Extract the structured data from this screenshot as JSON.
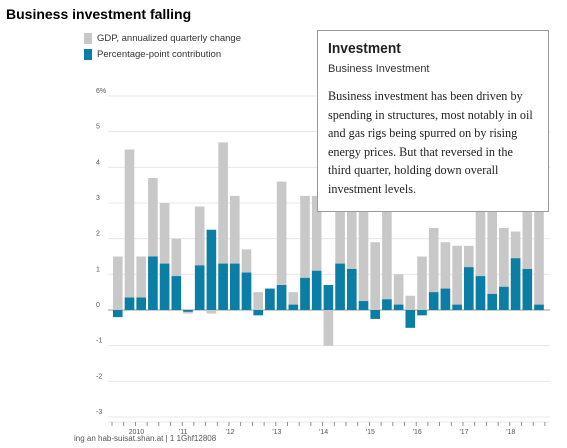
{
  "page": {
    "title": "Business investment falling"
  },
  "legend": [
    {
      "label": "GDP, annualized quarterly change",
      "color": "#c8c8c8"
    },
    {
      "label": "Percentage-point contribution",
      "color": "#0a7ea4"
    }
  ],
  "tooltip": {
    "title": "Investment",
    "subtitle": "Business Investment",
    "body": "Business investment has been driven by spending in structures, most notably in oil and gas rigs being spurred on by rising energy prices. But that reversed in the third quarter, holding down overall investment levels."
  },
  "bottom_caption": "ing an hab-suisat.shan.at | 1 1Ghf12808",
  "chart_data": {
    "type": "bar",
    "title": "Business investment falling",
    "xlabel": "",
    "ylabel": "",
    "ylim": [
      -3,
      6
    ],
    "yticks": [
      6,
      5,
      4,
      3,
      2,
      1,
      0,
      -1,
      -2,
      -3
    ],
    "ytick_labels": [
      "6%",
      "5",
      "4",
      "3",
      "2",
      "1",
      "0",
      "-1",
      "-2",
      "-3"
    ],
    "year_labels": [
      {
        "label": "2010",
        "index": 2
      },
      {
        "label": "'11",
        "index": 6
      },
      {
        "label": "'12",
        "index": 10
      },
      {
        "label": "'13",
        "index": 14
      },
      {
        "label": "'14",
        "index": 18
      },
      {
        "label": "'15",
        "index": 22
      },
      {
        "label": "'16",
        "index": 26
      },
      {
        "label": "'17",
        "index": 30
      },
      {
        "label": "'18",
        "index": 34
      }
    ],
    "grid": true,
    "legend_position": "top-left",
    "series": [
      {
        "name": "GDP, annualized quarterly change",
        "color": "#c8c8c8",
        "values": [
          1.5,
          4.5,
          1.5,
          3.7,
          3.0,
          2.0,
          -0.1,
          2.9,
          -0.1,
          4.7,
          3.2,
          1.7,
          0.5,
          0.6,
          3.6,
          0.5,
          3.2,
          3.2,
          -1.0,
          5.0,
          5.0,
          3.3,
          1.9,
          3.3,
          1.0,
          0.4,
          1.5,
          2.3,
          1.9,
          1.8,
          1.8,
          3.0,
          2.8,
          2.3,
          2.2,
          4.0,
          3.5
        ]
      },
      {
        "name": "Percentage-point contribution",
        "color": "#0a7ea4",
        "values": [
          -0.2,
          0.35,
          0.35,
          1.5,
          1.3,
          0.95,
          -0.05,
          1.25,
          2.25,
          1.3,
          1.3,
          1.05,
          -0.15,
          0.6,
          0.7,
          0.15,
          0.9,
          1.1,
          0.7,
          1.3,
          1.15,
          0.25,
          -0.25,
          0.3,
          0.15,
          -0.5,
          -0.15,
          0.5,
          0.6,
          0.15,
          1.2,
          0.95,
          0.45,
          0.65,
          1.45,
          1.15,
          0.15
        ]
      }
    ]
  }
}
